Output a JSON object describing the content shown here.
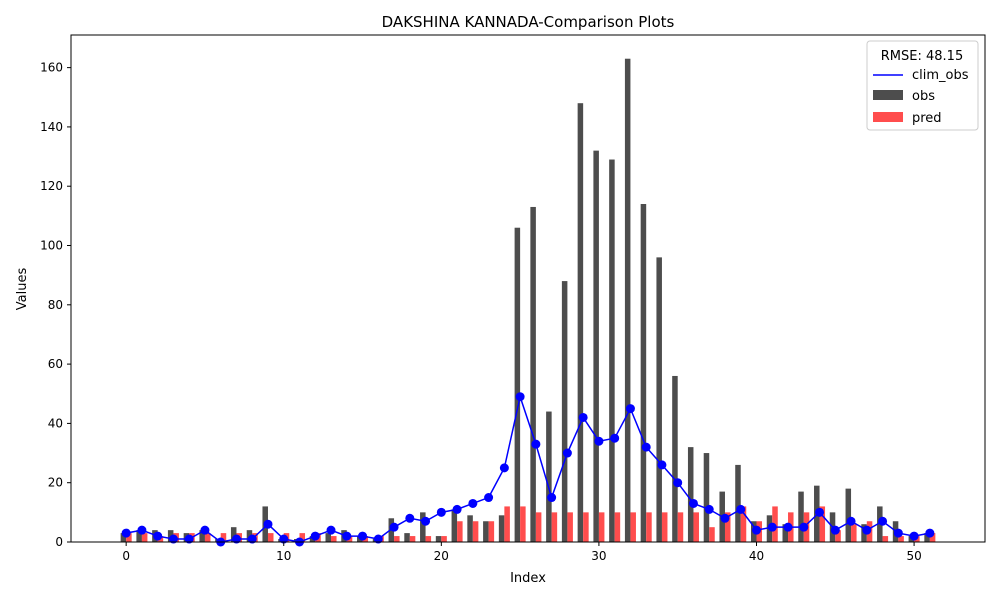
{
  "chart_data": {
    "type": "bar",
    "title": "DAKSHINA KANNADA-Comparison Plots",
    "xlabel": "Index",
    "ylabel": "Values",
    "xlim": [
      -3.5,
      54.5
    ],
    "ylim": [
      0,
      171
    ],
    "x_ticks": [
      0,
      10,
      20,
      30,
      40,
      50
    ],
    "y_ticks": [
      0,
      20,
      40,
      60,
      80,
      100,
      120,
      140,
      160
    ],
    "grid": false,
    "legend": {
      "title": "RMSE: 48.15",
      "placement": "upper right",
      "entries": [
        {
          "label": "clim_obs",
          "kind": "line",
          "color": "#0000ff"
        },
        {
          "label": "obs",
          "kind": "bar",
          "color": "#4d4d4d"
        },
        {
          "label": "pred",
          "kind": "bar",
          "color": "#ff4d4d"
        }
      ]
    },
    "x": [
      0,
      1,
      2,
      3,
      4,
      5,
      6,
      7,
      8,
      9,
      10,
      11,
      12,
      13,
      14,
      15,
      16,
      17,
      18,
      19,
      20,
      21,
      22,
      23,
      24,
      25,
      26,
      27,
      28,
      29,
      30,
      31,
      32,
      33,
      34,
      35,
      36,
      37,
      38,
      39,
      40,
      41,
      42,
      43,
      44,
      45,
      46,
      47,
      48,
      49,
      50,
      51
    ],
    "series": [
      {
        "name": "obs",
        "kind": "bar",
        "color": "#4d4d4d",
        "values": [
          3,
          4,
          4,
          4,
          3,
          4,
          1,
          5,
          4,
          12,
          1,
          1,
          2,
          3,
          4,
          2,
          1,
          8,
          3,
          10,
          2,
          11,
          9,
          7,
          9,
          106,
          113,
          44,
          88,
          148,
          132,
          129,
          163,
          114,
          96,
          56,
          32,
          30,
          17,
          26,
          7,
          9,
          6,
          17,
          19,
          10,
          18,
          6,
          12,
          7,
          2,
          3
        ]
      },
      {
        "name": "pred",
        "kind": "bar",
        "color": "#ff4d4d",
        "values": [
          3,
          3,
          2,
          3,
          3,
          3,
          3,
          3,
          3,
          3,
          3,
          3,
          3,
          2,
          2,
          2,
          2,
          2,
          2,
          2,
          2,
          7,
          7,
          7,
          12,
          12,
          10,
          10,
          10,
          10,
          10,
          10,
          10,
          10,
          10,
          10,
          10,
          5,
          10,
          12,
          7,
          12,
          10,
          10,
          12,
          4,
          6,
          7,
          2,
          2,
          2,
          3
        ]
      },
      {
        "name": "clim_obs",
        "kind": "line",
        "color": "#0000ff",
        "values": [
          3,
          4,
          2,
          1,
          1,
          4,
          0,
          1,
          1,
          6,
          1,
          0,
          2,
          4,
          2,
          2,
          1,
          5,
          8,
          7,
          10,
          11,
          13,
          15,
          25,
          49,
          33,
          15,
          30,
          42,
          34,
          35,
          45,
          32,
          26,
          20,
          13,
          11,
          8,
          11,
          4,
          5,
          5,
          5,
          10,
          4,
          7,
          4,
          7,
          3,
          2,
          3
        ]
      }
    ]
  }
}
